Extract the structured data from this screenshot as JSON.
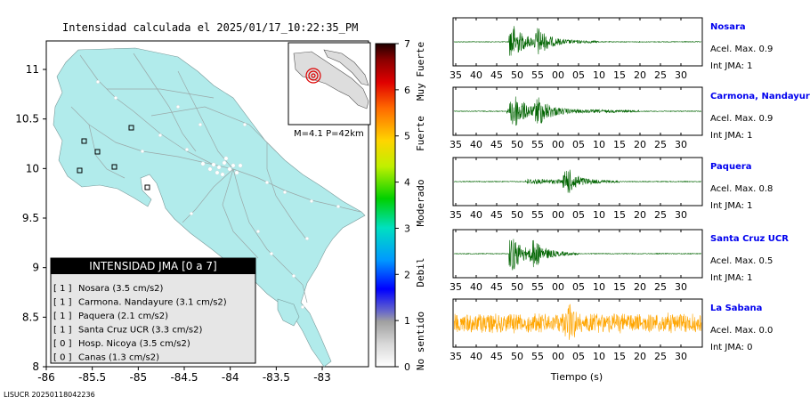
{
  "map": {
    "title": "Intensidad calculada el 2025/01/17_10:22:35_PM",
    "x_ticks": [
      "-86",
      "-85.5",
      "-85",
      "-84.5",
      "-84",
      "-83.5",
      "-83"
    ],
    "y_ticks": [
      "11",
      "10.5",
      "10",
      "9.5",
      "9",
      "8.5",
      "8"
    ],
    "inset_text": "M=4.1 P=42km",
    "footer": "LISUCR 20250118042236",
    "legend_title": "INTENSIDAD JMA [0 a 7]",
    "legend_items": [
      {
        "code": "[ 1 ]",
        "text": "Nosara (3.5 cm/s2)"
      },
      {
        "code": "[ 1 ]",
        "text": "Carmona. Nandayure (3.1 cm/s2)"
      },
      {
        "code": "[ 1 ]",
        "text": "Paquera (2.1 cm/s2)"
      },
      {
        "code": "[ 1 ]",
        "text": "Santa Cruz UCR (3.3 cm/s2)"
      },
      {
        "code": "[ 0 ]",
        "text": "Hosp. Nicoya (3.5 cm/s2)"
      },
      {
        "code": "[ 0 ]",
        "text": "Canas (1.3 cm/s2)"
      }
    ],
    "colorbar_ticks": [
      "0",
      "1",
      "2",
      "3",
      "4",
      "5",
      "6",
      "7"
    ],
    "colorbar_labels": [
      "No sentido",
      "Debil",
      "Moderado",
      "Fuerte",
      "Muy Fuerte"
    ],
    "colors": {
      "land": "#b1ebeb",
      "sea": "#ffffff",
      "legend_header": "#000000",
      "legend_bg": "#e6e6e6",
      "epicenter": "#dd0000"
    }
  },
  "chart_data": [
    {
      "type": "line",
      "title": "Nosara",
      "series": [
        {
          "name": "Nosara",
          "color": "#006400"
        }
      ],
      "x_tick_labels": [
        "35",
        "40",
        "45",
        "50",
        "55",
        "00",
        "05",
        "10",
        "15",
        "20",
        "25",
        "30"
      ],
      "signal": {
        "onset_tick": "48",
        "peaks_at": [
          "48.5",
          "55"
        ],
        "duration_to": "10"
      },
      "annotations": [
        "Acel. Max. 0.9",
        "Int JMA: 1"
      ]
    },
    {
      "type": "line",
      "title": "Carmona, Nandayure",
      "series": [
        {
          "name": "Carmona, Nandayure",
          "color": "#006400"
        }
      ],
      "x_tick_labels": [
        "35",
        "40",
        "45",
        "50",
        "55",
        "00",
        "05",
        "10",
        "15",
        "20",
        "25",
        "30"
      ],
      "signal": {
        "onset_tick": "47.5",
        "peaks_at": [
          "49",
          "55"
        ],
        "duration_to": "20"
      },
      "annotations": [
        "Acel. Max. 0.9",
        "Int JMA: 1"
      ]
    },
    {
      "type": "line",
      "title": "Paquera",
      "series": [
        {
          "name": "Paquera",
          "color": "#006400"
        }
      ],
      "x_tick_labels": [
        "35",
        "40",
        "45",
        "50",
        "55",
        "00",
        "05",
        "10",
        "15",
        "20",
        "25",
        "30"
      ],
      "signal": {
        "onset_tick": "52",
        "peaks_at": [
          "02"
        ],
        "duration_to": "15"
      },
      "annotations": [
        "Acel. Max. 0.8",
        "Int JMA: 1"
      ]
    },
    {
      "type": "line",
      "title": "Santa Cruz UCR",
      "series": [
        {
          "name": "Santa Cruz UCR",
          "color": "#006400"
        }
      ],
      "x_tick_labels": [
        "35",
        "40",
        "45",
        "50",
        "55",
        "00",
        "05",
        "10",
        "15",
        "20",
        "25",
        "30"
      ],
      "signal": {
        "onset_tick": "48",
        "peaks_at": [
          "48.5",
          "54"
        ],
        "duration_to": "05"
      },
      "annotations": [
        "Acel. Max. 0.5",
        "Int JMA: 1"
      ]
    },
    {
      "type": "line",
      "title": "La Sabana",
      "series": [
        {
          "name": "La Sabana",
          "color": "#ffa500"
        }
      ],
      "x_tick_labels": [
        "35",
        "40",
        "45",
        "50",
        "55",
        "00",
        "05",
        "10",
        "15",
        "20",
        "25",
        "30"
      ],
      "xlabel": "Tiempo (s)",
      "signal": {
        "onset_tick": "35",
        "peaks_at": [
          "03"
        ],
        "duration_to": "33",
        "noisy": true
      },
      "annotations": [
        "Acel. Max. 0.0",
        "Int JMA: 0"
      ]
    }
  ]
}
